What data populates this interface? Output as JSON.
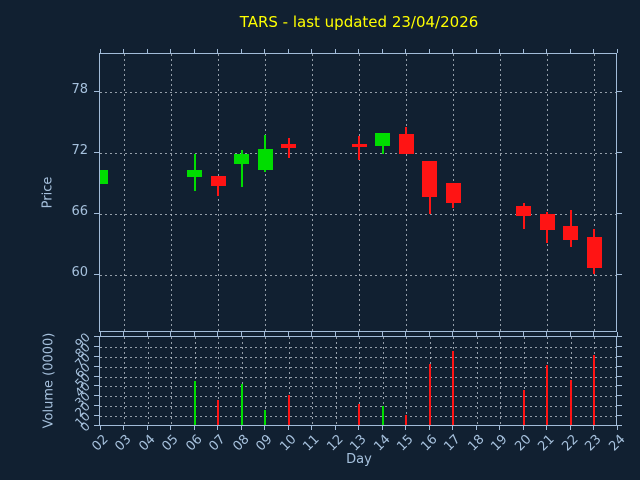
{
  "title": {
    "text": "TARS - last updated 23/04/2026"
  },
  "labels": {
    "price_axis": "Price",
    "volume_axis": "Volume (0000)",
    "x_axis": "Day"
  },
  "colors": {
    "background": "#112031",
    "frame": "#a2bcd9",
    "text": "#a6c1dd",
    "grid": "#bfc8d1",
    "title": "#ffff00",
    "up": "#00dd00",
    "down": "#ff1414"
  },
  "chart_data": {
    "type": "candlestick",
    "title": "TARS - last updated 23/04/2026",
    "xlabel": "Day",
    "ylabel_top": "Price",
    "ylabel_bottom": "Volume (0000)",
    "x_tick_labels": [
      "02",
      "03",
      "04",
      "05",
      "06",
      "07",
      "08",
      "09",
      "10",
      "11",
      "12",
      "13",
      "14",
      "15",
      "16",
      "17",
      "18",
      "19",
      "20",
      "21",
      "22",
      "23",
      "24"
    ],
    "xlim": [
      2,
      24
    ],
    "price_ticks": [
      78,
      72,
      66,
      60
    ],
    "price_ylim": [
      54.3,
      81.7
    ],
    "volume_ticks": [
      90,
      80,
      70,
      60,
      50,
      40,
      30,
      20,
      10,
      0
    ],
    "volume_ylim": [
      0,
      90
    ],
    "grid": true,
    "candles": [
      {
        "day": 2,
        "label": "02",
        "open": 68.9,
        "high": 70.3,
        "low": 68.9,
        "close": 70.3,
        "volume": null
      },
      {
        "day": 6,
        "label": "06",
        "open": 69.6,
        "high": 71.9,
        "low": 68.2,
        "close": 70.35,
        "volume": 46
      },
      {
        "day": 7,
        "label": "07",
        "open": 69.7,
        "high": 69.7,
        "low": 67.8,
        "close": 68.7,
        "volume": 26
      },
      {
        "day": 8,
        "label": "08",
        "open": 70.85,
        "high": 72.25,
        "low": 68.6,
        "close": 71.9,
        "volume": 42
      },
      {
        "day": 9,
        "label": "09",
        "open": 70.35,
        "high": 73.7,
        "low": 70.1,
        "close": 72.35,
        "volume": 16
      },
      {
        "day": 10,
        "label": "10",
        "open": 72.85,
        "high": 73.45,
        "low": 71.45,
        "close": 72.5,
        "volume": 31
      },
      {
        "day": 13,
        "label": "13",
        "open": 72.85,
        "high": 73.6,
        "low": 71.3,
        "close": 72.55,
        "volume": 22
      },
      {
        "day": 14,
        "label": "14",
        "open": 72.65,
        "high": 73.95,
        "low": 71.9,
        "close": 73.95,
        "volume": 20
      },
      {
        "day": 15,
        "label": "15",
        "open": 73.8,
        "high": 74.55,
        "low": 71.9,
        "close": 71.9,
        "volume": 11
      },
      {
        "day": 16,
        "label": "16",
        "open": 71.15,
        "high": 71.15,
        "low": 65.95,
        "close": 67.65,
        "volume": 63
      },
      {
        "day": 17,
        "label": "17",
        "open": 69.05,
        "high": 69.05,
        "low": 66.6,
        "close": 67.05,
        "volume": 76
      },
      {
        "day": 20,
        "label": "20",
        "open": 66.8,
        "high": 67.05,
        "low": 64.5,
        "close": 65.8,
        "volume": 36
      },
      {
        "day": 21,
        "label": "21",
        "open": 66.0,
        "high": 66.15,
        "low": 63.15,
        "close": 64.45,
        "volume": 62
      },
      {
        "day": 22,
        "label": "22",
        "open": 64.85,
        "high": 66.4,
        "low": 62.7,
        "close": 63.45,
        "volume": 47
      },
      {
        "day": 23,
        "label": "23",
        "open": 63.7,
        "high": 64.5,
        "low": 60.05,
        "close": 60.7,
        "volume": 72
      }
    ]
  }
}
